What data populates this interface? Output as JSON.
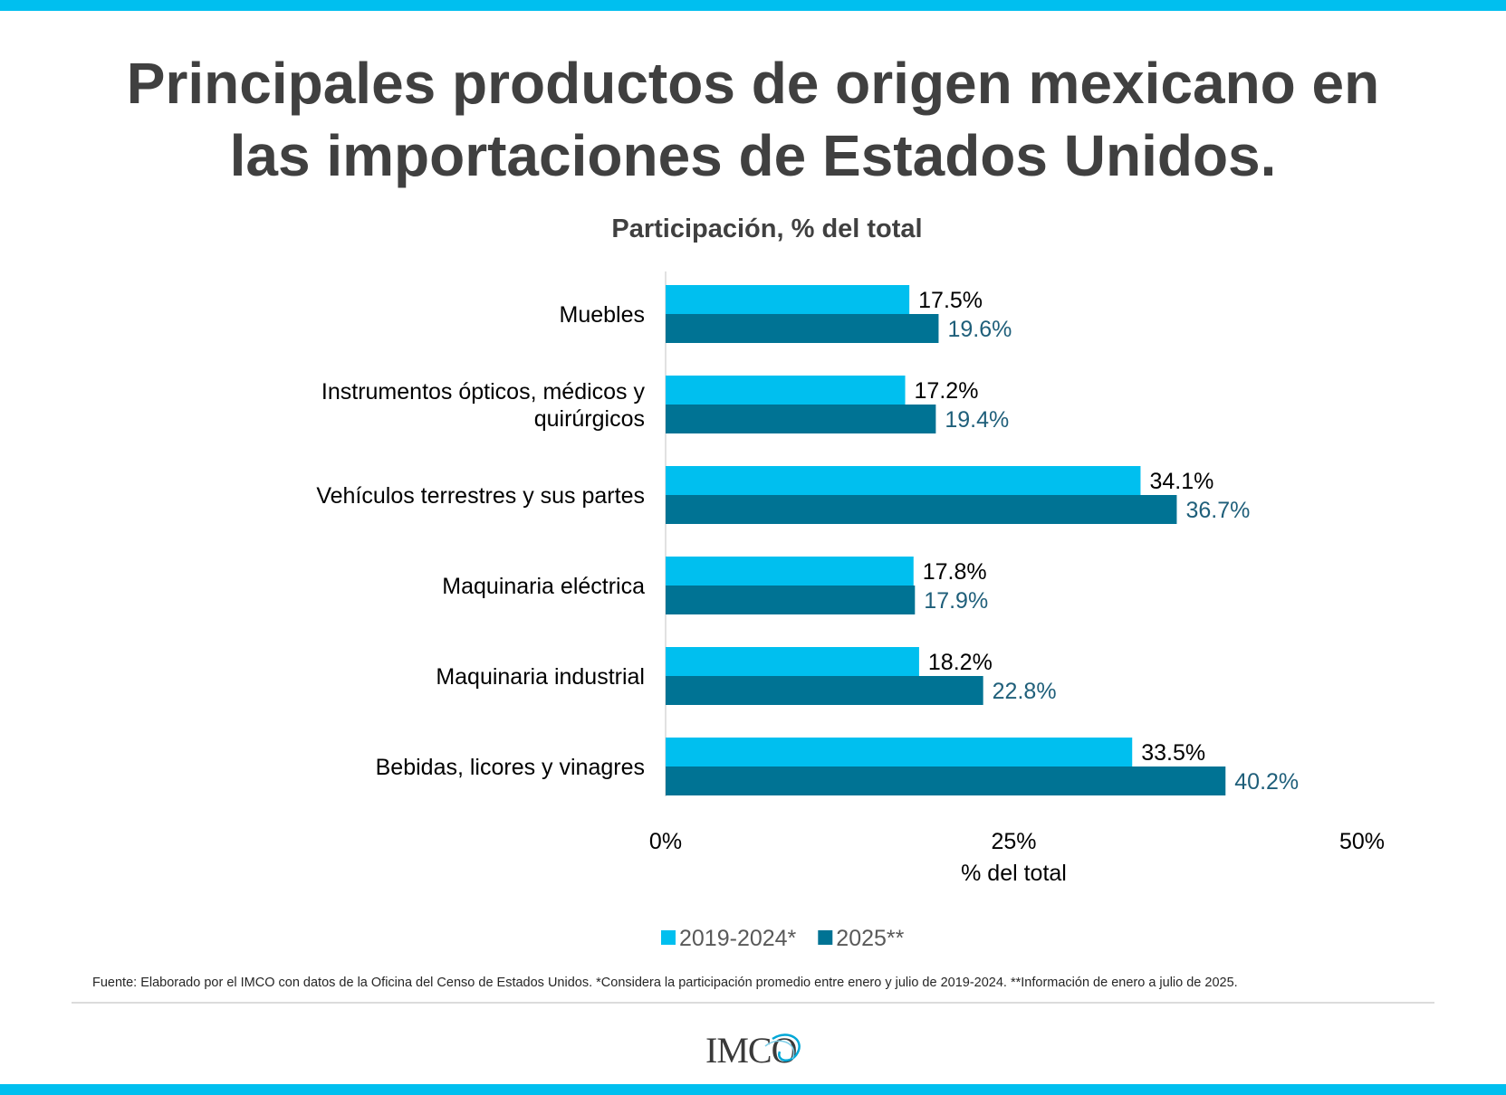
{
  "header": {
    "title_line1": "Principales productos de origen mexicano en",
    "title_line2": "las importaciones de Estados Unidos."
  },
  "colors": {
    "accent": "#00bfef",
    "series1": "#00bfef",
    "series2": "#007394",
    "text": "#404040"
  },
  "chart_data": {
    "type": "bar",
    "orientation": "horizontal",
    "title": "Participación, % del total",
    "xlabel": "% del total",
    "ylabel": "",
    "xlim": [
      0,
      50
    ],
    "xticks": [
      "0%",
      "25%",
      "50%"
    ],
    "categories": [
      "Muebles",
      "Instrumentos ópticos, médicos y quirúrgicos",
      "Vehículos terrestres y sus partes",
      "Maquinaria eléctrica",
      "Maquinaria industrial",
      "Bebidas, licores y vinagres"
    ],
    "category_lines": [
      [
        "Muebles"
      ],
      [
        "Instrumentos ópticos, médicos y",
        "quirúrgicos"
      ],
      [
        "Vehículos terrestres y sus partes"
      ],
      [
        "Maquinaria eléctrica"
      ],
      [
        "Maquinaria industrial"
      ],
      [
        "Bebidas, licores y vinagres"
      ]
    ],
    "series": [
      {
        "name": "2019-2024*",
        "color": "#00bfef",
        "label_color": "#000000",
        "values": [
          17.5,
          17.2,
          34.1,
          17.8,
          18.2,
          33.5
        ],
        "labels": [
          "17.5%",
          "17.2%",
          "34.1%",
          "17.8%",
          "18.2%",
          "33.5%"
        ]
      },
      {
        "name": "2025**",
        "color": "#007394",
        "label_color": "#1f5f7a",
        "values": [
          19.6,
          19.4,
          36.7,
          17.9,
          22.8,
          40.2
        ],
        "labels": [
          "19.6%",
          "19.4%",
          "36.7%",
          "17.9%",
          "22.8%",
          "40.2%"
        ]
      }
    ],
    "grid": false,
    "legend_position": "bottom"
  },
  "footer": {
    "source": "Fuente: Elaborado por el IMCO con datos de la Oficina del Censo de Estados Unidos. *Considera la participación promedio entre enero y julio de 2019-2024. **Información de enero a julio de 2025.",
    "logo_text": "IMCO"
  }
}
